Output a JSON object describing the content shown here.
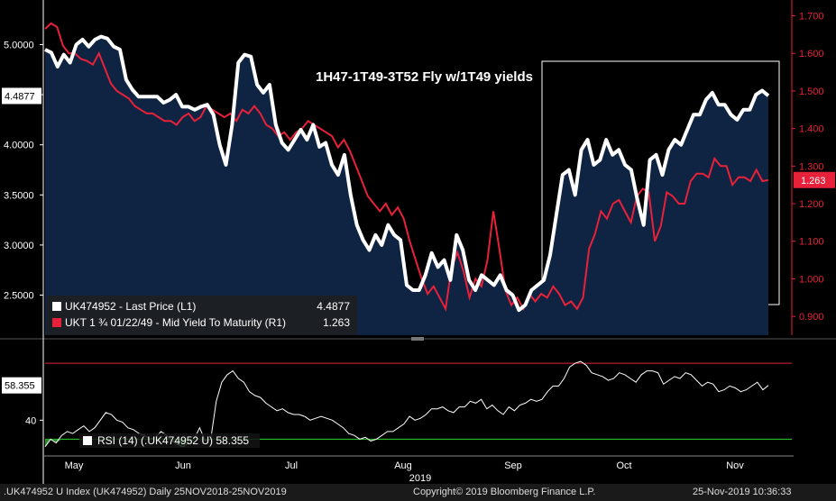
{
  "chart_data": [
    {
      "type": "line",
      "title": "1H47-1T49-3T52 Fly w/1T49 yields",
      "xlabel": "2019",
      "x_ticks": [
        "May",
        "Jun",
        "Jul",
        "Aug",
        "Sep",
        "Oct",
        "Nov"
      ],
      "y_left": {
        "ticks": [
          "5.0000",
          "4.5000",
          "4.0000",
          "3.5000",
          "3.0000",
          "2.5000"
        ],
        "ylim": [
          2.1,
          5.4
        ]
      },
      "y_right": {
        "ticks": [
          "1.700",
          "1.600",
          "1.500",
          "1.400",
          "1.300",
          "1.200",
          "1.100",
          "1.000",
          "0.900"
        ],
        "ylim": [
          0.85,
          1.73
        ]
      },
      "series": [
        {
          "name": "UK474952 - Last Price (L1)",
          "axis": "left",
          "color": "#ffffff",
          "last_label": "4.4877",
          "values": [
            4.95,
            4.92,
            4.78,
            4.9,
            4.82,
            5.0,
            5.05,
            4.98,
            5.05,
            5.08,
            5.06,
            4.98,
            4.95,
            4.65,
            4.55,
            4.48,
            4.48,
            4.48,
            4.48,
            4.42,
            4.45,
            4.5,
            4.38,
            4.38,
            4.35,
            4.38,
            4.4,
            4.3,
            4.0,
            3.8,
            4.2,
            4.82,
            4.9,
            4.88,
            4.6,
            4.52,
            4.6,
            4.2,
            4.02,
            3.95,
            4.05,
            4.15,
            4.05,
            4.2,
            3.98,
            4.02,
            3.8,
            3.7,
            3.9,
            3.5,
            3.2,
            3.05,
            2.95,
            3.1,
            3.0,
            3.2,
            3.1,
            3.05,
            2.6,
            2.55,
            2.55,
            2.7,
            2.92,
            2.78,
            2.85,
            2.65,
            3.1,
            2.95,
            2.65,
            2.55,
            2.7,
            2.65,
            2.6,
            2.7,
            2.55,
            2.5,
            2.35,
            2.4,
            2.55,
            2.6,
            2.65,
            2.9,
            3.3,
            3.7,
            3.75,
            3.5,
            3.95,
            4.05,
            3.8,
            3.85,
            4.05,
            3.9,
            3.95,
            3.8,
            3.75,
            3.45,
            3.2,
            3.85,
            3.9,
            3.7,
            3.95,
            4.05,
            4.0,
            4.15,
            4.3,
            4.3,
            4.45,
            4.52,
            4.4,
            4.4,
            4.3,
            4.25,
            4.35,
            4.35,
            4.5,
            4.54,
            4.49
          ]
        },
        {
          "name": "UKT 1 ¾ 01/22/49 - Mid Yield To Maturity (R1)",
          "axis": "right",
          "color": "#e8213a",
          "last_label": "1.263",
          "values": [
            1.665,
            1.68,
            1.67,
            1.62,
            1.6,
            1.6,
            1.585,
            1.58,
            1.57,
            1.6,
            1.56,
            1.52,
            1.5,
            1.49,
            1.48,
            1.46,
            1.45,
            1.44,
            1.44,
            1.43,
            1.42,
            1.42,
            1.41,
            1.43,
            1.44,
            1.42,
            1.43,
            1.46,
            1.45,
            1.44,
            1.43,
            1.44,
            1.42,
            1.45,
            1.44,
            1.46,
            1.44,
            1.41,
            1.4,
            1.38,
            1.39,
            1.37,
            1.39,
            1.4,
            1.42,
            1.41,
            1.4,
            1.39,
            1.38,
            1.35,
            1.37,
            1.34,
            1.3,
            1.26,
            1.22,
            1.2,
            1.18,
            1.2,
            1.17,
            1.19,
            1.16,
            1.1,
            1.05,
            1.0,
            0.96,
            0.98,
            0.95,
            0.92,
            1.03,
            1.07,
            1.02,
            0.95,
            1.0,
            0.98,
            1.05,
            1.18,
            1.08,
            0.97,
            0.93,
            0.95,
            0.92,
            0.96,
            0.94,
            0.96,
            0.95,
            0.98,
            0.96,
            0.93,
            0.94,
            0.92,
            0.95,
            1.08,
            1.12,
            1.18,
            1.16,
            1.2,
            1.21,
            1.18,
            1.15,
            1.22,
            1.24,
            1.23,
            1.1,
            1.14,
            1.23,
            1.22,
            1.2,
            1.2,
            1.26,
            1.28,
            1.28,
            1.27,
            1.32,
            1.3,
            1.3,
            1.25,
            1.27,
            1.27,
            1.26,
            1.29,
            1.26,
            1.263
          ]
        }
      ]
    },
    {
      "type": "line",
      "title": "",
      "y_ticks": [
        "58.355",
        "40"
      ],
      "ylim": [
        24,
        81
      ],
      "upper_band": 70,
      "lower_band": 30,
      "series": [
        {
          "name": "RSI (14) (.UK474952 U)",
          "color": "#ffffff",
          "last_label": "58.355",
          "values": [
            26,
            30,
            28,
            32,
            34,
            33,
            35,
            37,
            34,
            36,
            40,
            44,
            43,
            40,
            39,
            36,
            35,
            33,
            32,
            30,
            31,
            34,
            32,
            29,
            27,
            26,
            28,
            30,
            36,
            29,
            30,
            50,
            60,
            64,
            66,
            62,
            60,
            55,
            53,
            52,
            49,
            47,
            45,
            46,
            44,
            43,
            43,
            42,
            40,
            41,
            42,
            41,
            40,
            38,
            36,
            33,
            32,
            30,
            31,
            29,
            30,
            32,
            34,
            34,
            36,
            38,
            42,
            40,
            41,
            43,
            46,
            46,
            47,
            45,
            44,
            47,
            47,
            50,
            49,
            51,
            46,
            48,
            45,
            43,
            47,
            45,
            48,
            49,
            51,
            50,
            51,
            55,
            58,
            58,
            62,
            68,
            70,
            71,
            69,
            65,
            64,
            63,
            61,
            62,
            65,
            64,
            62,
            60,
            64,
            66,
            66,
            65,
            59,
            61,
            63,
            62,
            65,
            64,
            61,
            58,
            60,
            59,
            55,
            56,
            58,
            57,
            55,
            56,
            58,
            60,
            56,
            58.355
          ]
        }
      ]
    }
  ],
  "footer": {
    "index": ".UK474952 U Index (UK474952)  Daily 25NOV2018-25NOV2019",
    "copyright": "Copyright© 2019 Bloomberg Finance L.P.",
    "timestamp": "25-Nov-2019 10:36:33"
  },
  "legend": {
    "white_label": "UK474952 - Last Price (L1)",
    "white_value": "4.4877",
    "red_label": "UKT 1 ¾ 01/22/49 - Mid Yield To Maturity (R1)",
    "red_value": "1.263"
  },
  "rsi_legend": {
    "label": "RSI (14) (.UK474952 U) 58.355"
  }
}
